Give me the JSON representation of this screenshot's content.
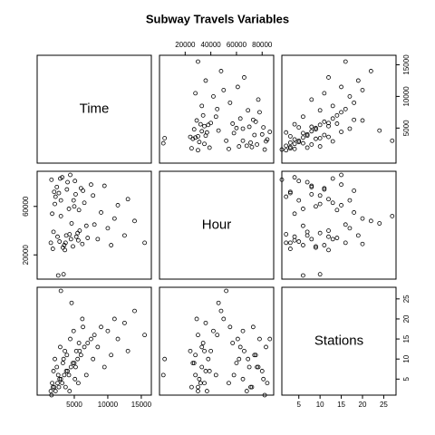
{
  "chart_data": {
    "type": "scatter-matrix",
    "title": "Subway Travels Variables",
    "variables": [
      {
        "name": "Time",
        "lim": [
          -540,
          16500
        ],
        "xticks": [
          5000,
          10000,
          15000
        ],
        "yticks": [
          5000,
          10000,
          15000
        ],
        "values": [
          1500,
          2000,
          2500,
          3000,
          3500,
          4000,
          4500,
          5000,
          5500,
          6000,
          1800,
          2200,
          2800,
          3200,
          3800,
          4200,
          4800,
          5200,
          5800,
          6500,
          7000,
          7500,
          8000,
          9000,
          10000,
          11000,
          12500,
          14000,
          15500,
          13000,
          2600,
          3400,
          1600,
          2400,
          3600,
          4400,
          5600,
          6200,
          3000,
          4600,
          1900,
          2100,
          2700,
          3300,
          3900,
          4300,
          5100,
          5700,
          6800,
          7800,
          8500,
          9500,
          11500,
          10500,
          1700,
          2900,
          3700,
          4900,
          6300,
          5300
        ]
      },
      {
        "name": "Hour",
        "lim": [
          0,
          89000
        ],
        "xticks": [
          20000,
          40000,
          60000,
          80000
        ],
        "yticks": [
          20000,
          60000
        ],
        "values": [
          30000,
          72000,
          35000,
          65000,
          28000,
          80000,
          33000,
          60000,
          38000,
          75000,
          25000,
          68000,
          31000,
          84000,
          36000,
          58000,
          27000,
          70000,
          40000,
          63000,
          34000,
          78000,
          45000,
          55000,
          42000,
          50000,
          36000,
          48000,
          30000,
          66000,
          3000,
          4000,
          82000,
          76000,
          24000,
          86000,
          32000,
          29000,
          52000,
          46000,
          39000,
          62000,
          71000,
          26000,
          74000,
          37000,
          81000,
          57000,
          44000,
          69000,
          33000,
          77000,
          61000,
          28000,
          54000,
          83000,
          30000,
          65000,
          73000,
          35000
        ]
      },
      {
        "name": "Stations",
        "lim": [
          1,
          27.9
        ],
        "xticks": [
          5,
          10,
          15,
          20,
          25
        ],
        "yticks": [
          5,
          10,
          15,
          20,
          25
        ],
        "values": [
          2,
          3,
          4,
          5,
          6,
          7,
          8,
          9,
          10,
          11,
          3,
          2,
          5,
          4,
          7,
          6,
          9,
          8,
          12,
          13,
          14,
          15,
          16,
          18,
          17,
          20,
          19,
          22,
          16,
          12,
          6,
          10,
          1,
          8,
          12,
          15,
          4,
          20,
          27,
          24,
          7,
          10,
          3,
          9,
          11,
          2,
          5,
          14,
          6,
          10,
          13,
          8,
          15,
          11,
          4,
          13,
          3,
          17,
          18,
          12
        ]
      }
    ]
  }
}
